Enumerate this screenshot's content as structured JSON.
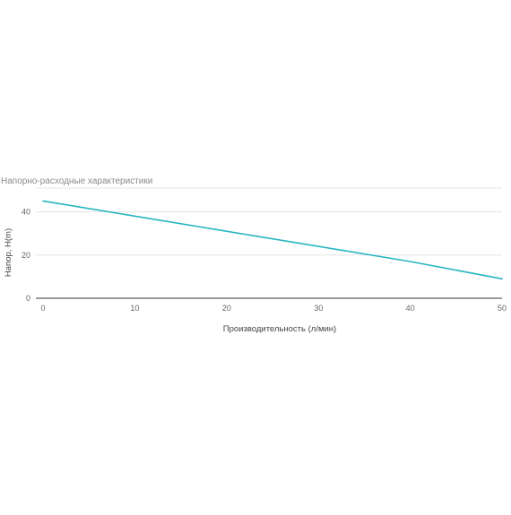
{
  "chart_data": {
    "type": "line",
    "title": "Напорно-расходные характеристики",
    "xlabel": "Производительность (л/мин)",
    "ylabel": "Напор, H(m)",
    "xlim": [
      0,
      50
    ],
    "ylim": [
      0,
      45
    ],
    "x_ticks": [
      0,
      10,
      20,
      30,
      40,
      50
    ],
    "y_ticks": [
      0,
      20,
      40
    ],
    "grid": true,
    "series": [
      {
        "color": "#29b6c2",
        "x": [
          0,
          10,
          20,
          30,
          40,
          50
        ],
        "y": [
          45,
          38,
          31,
          24,
          17,
          9
        ]
      }
    ]
  }
}
